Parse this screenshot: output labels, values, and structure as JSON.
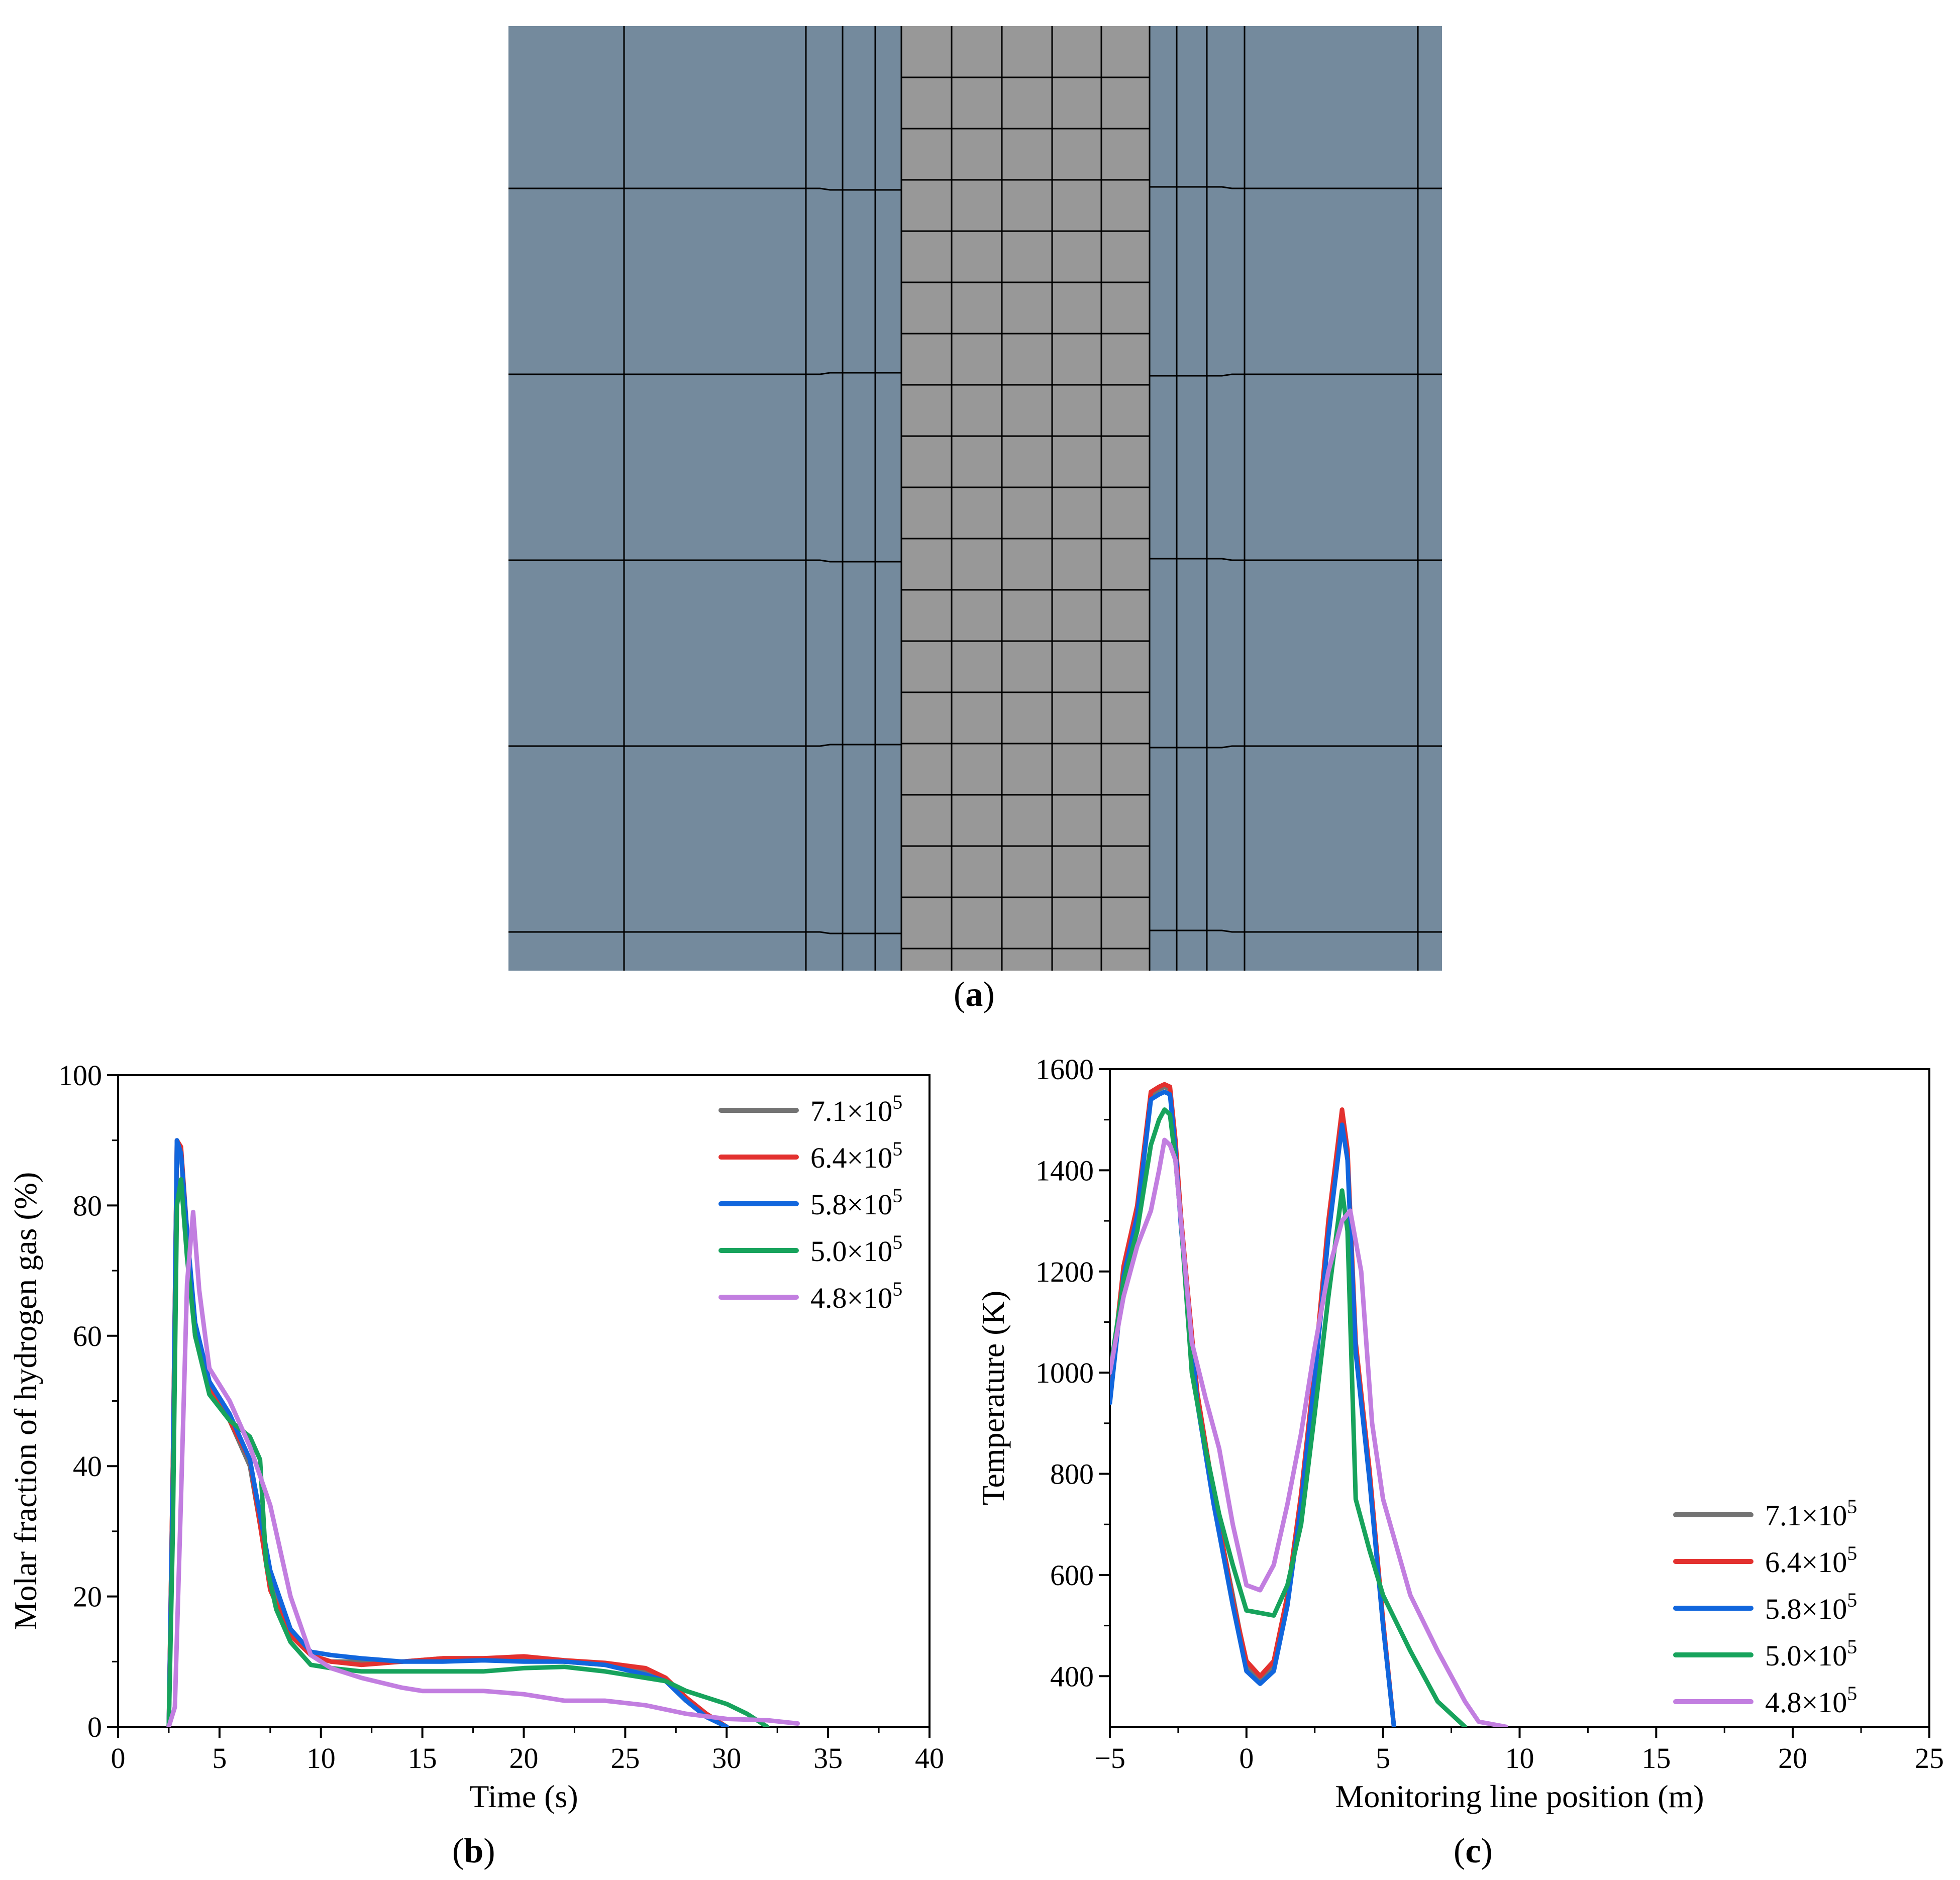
{
  "panel_labels": {
    "a": "a",
    "b": "b",
    "c": "c"
  },
  "mesh": {
    "outer_color": "#748a9d",
    "inner_color": "#989898",
    "line_color": "#000000"
  },
  "series_colors": {
    "7.1×10^5": "#737373",
    "6.4×10^5": "#e3312f",
    "5.8×10^5": "#1166dd",
    "5.0×10^5": "#17a35c",
    "4.8×10^5": "#c27ee0"
  },
  "chart_data": [
    {
      "id": "b",
      "type": "line",
      "xlabel": "Time (s)",
      "ylabel": "Molar fraction of hydrogen gas (%)",
      "xlim": [
        0,
        40
      ],
      "ylim": [
        0,
        100
      ],
      "xticks": [
        0,
        5,
        10,
        15,
        20,
        25,
        30,
        35,
        40
      ],
      "yticks": [
        0,
        20,
        40,
        60,
        80,
        100
      ],
      "legend_position": "top-right",
      "series": [
        {
          "name": "7.1×10^5",
          "base": "7.1×10",
          "exp": "5",
          "color": "#737373",
          "x": [
            2.5,
            2.7,
            2.9,
            3.1,
            3.4,
            3.8,
            4.5,
            5.5,
            6.5,
            7.5,
            8.5,
            9.5,
            10.5,
            12,
            14,
            16,
            18,
            20,
            22,
            24,
            26,
            27,
            28,
            29,
            30
          ],
          "y": [
            0,
            40,
            89,
            88,
            75,
            60,
            52,
            47,
            40,
            22,
            15,
            11,
            10,
            10,
            10,
            10.5,
            10.5,
            10.5,
            10,
            9.5,
            8.5,
            7,
            4,
            1.5,
            0
          ]
        },
        {
          "name": "6.4×10^5",
          "base": "6.4×10",
          "exp": "5",
          "color": "#e3312f",
          "x": [
            2.5,
            2.7,
            2.9,
            3.1,
            3.4,
            3.8,
            4.5,
            5.5,
            6.5,
            7.5,
            8.5,
            9.5,
            10.5,
            12,
            14,
            16,
            18,
            20,
            22,
            24,
            26,
            27,
            28,
            29,
            30
          ],
          "y": [
            0,
            40,
            90,
            89,
            76,
            60,
            52,
            47,
            41,
            21,
            14,
            11,
            10,
            9.5,
            10,
            10.5,
            10.5,
            10.8,
            10.2,
            9.8,
            9,
            7.5,
            4.5,
            2,
            0
          ]
        },
        {
          "name": "5.8×10^5",
          "base": "5.8×10",
          "exp": "5",
          "color": "#1166dd",
          "x": [
            2.5,
            2.7,
            2.9,
            3.1,
            3.4,
            3.8,
            4.5,
            5.5,
            6.5,
            7.5,
            8.5,
            9.5,
            10.5,
            12,
            14,
            16,
            18,
            20,
            22,
            24,
            26,
            27,
            28,
            29,
            30
          ],
          "y": [
            0,
            38,
            90,
            88,
            76,
            62,
            53,
            48,
            41,
            24,
            15,
            11.5,
            11,
            10.5,
            10,
            10,
            10.2,
            10,
            10,
            9.5,
            8,
            7,
            4,
            1.5,
            0
          ]
        },
        {
          "name": "5.0×10^5",
          "base": "5.0×10",
          "exp": "5",
          "color": "#17a35c",
          "x": [
            2.5,
            2.7,
            2.9,
            3.1,
            3.4,
            3.8,
            4.5,
            5.5,
            6.5,
            7.0,
            7.3,
            7.8,
            8.5,
            9.5,
            10.5,
            12,
            14,
            16,
            18,
            20,
            22,
            24,
            26,
            27,
            28,
            30,
            31,
            32
          ],
          "y": [
            0,
            30,
            80,
            84,
            72,
            60,
            51,
            47,
            44.5,
            41,
            25,
            18,
            13,
            9.5,
            9,
            8.5,
            8.5,
            8.5,
            8.5,
            9,
            9.2,
            8.5,
            7.5,
            7,
            5.5,
            3.5,
            2,
            0
          ]
        },
        {
          "name": "4.8×10^5",
          "base": "4.8×10",
          "exp": "5",
          "color": "#c27ee0",
          "x": [
            2.5,
            2.8,
            3.1,
            3.4,
            3.7,
            4.0,
            4.5,
            5.5,
            6.5,
            7.5,
            8.5,
            9.5,
            10.5,
            12,
            14,
            15,
            18,
            20,
            22,
            24,
            26,
            28,
            30,
            32,
            33.5
          ],
          "y": [
            0,
            3,
            35,
            68,
            79,
            67,
            55,
            50,
            43,
            34,
            20,
            11,
            9,
            7.5,
            6,
            5.5,
            5.5,
            5,
            4,
            4,
            3.3,
            2,
            1.2,
            1,
            0.5
          ]
        }
      ]
    },
    {
      "id": "c",
      "type": "line",
      "xlabel": "Monitoring line position (m)",
      "ylabel": "Temperature (K)",
      "xlim": [
        -5,
        25
      ],
      "ylim": [
        300,
        1600
      ],
      "xticks": [
        -5,
        0,
        5,
        10,
        15,
        20,
        25
      ],
      "xtick_labels": [
        "−5",
        "0",
        "5",
        "10",
        "15",
        "20",
        "25"
      ],
      "yticks": [
        400,
        600,
        800,
        1000,
        1200,
        1400,
        1600
      ],
      "legend_position": "bottom-right",
      "series": [
        {
          "name": "7.1×10^5",
          "base": "7.1×10",
          "exp": "5",
          "color": "#737373",
          "x": [
            -5,
            -4.5,
            -4,
            -3.5,
            -3.2,
            -3.0,
            -2.8,
            -2.6,
            -2.4,
            -2.2,
            -1.8,
            -1.2,
            -0.5,
            0,
            0.5,
            1.0,
            1.5,
            2.0,
            2.5,
            3.0,
            3.5,
            3.7,
            4.0,
            4.5,
            5.0,
            5.4
          ],
          "y": [
            950,
            1200,
            1320,
            1550,
            1560,
            1565,
            1560,
            1450,
            1300,
            1180,
            950,
            750,
            560,
            420,
            395,
            420,
            550,
            750,
            1000,
            1280,
            1500,
            1430,
            1050,
            800,
            500,
            300
          ]
        },
        {
          "name": "6.4×10^5",
          "base": "6.4×10",
          "exp": "5",
          "color": "#e3312f",
          "x": [
            -5,
            -4.5,
            -4,
            -3.5,
            -3.2,
            -3.0,
            -2.8,
            -2.6,
            -2.4,
            -2.2,
            -1.8,
            -1.2,
            -0.5,
            0,
            0.5,
            1.0,
            1.5,
            2.0,
            2.5,
            3.0,
            3.5,
            3.7,
            4.0,
            4.5,
            5.0,
            5.4
          ],
          "y": [
            960,
            1210,
            1330,
            1555,
            1565,
            1570,
            1565,
            1460,
            1310,
            1190,
            960,
            760,
            550,
            430,
            400,
            430,
            560,
            760,
            1010,
            1300,
            1520,
            1440,
            1060,
            810,
            510,
            300
          ]
        },
        {
          "name": "5.8×10^5",
          "base": "5.8×10",
          "exp": "5",
          "color": "#1166dd",
          "x": [
            -5,
            -4.5,
            -4,
            -3.5,
            -3.2,
            -3.0,
            -2.8,
            -2.6,
            -2.4,
            -2.2,
            -1.8,
            -1.2,
            -0.5,
            0,
            0.5,
            1.0,
            1.5,
            2.0,
            2.5,
            3.0,
            3.5,
            3.7,
            4.0,
            4.5,
            5.0,
            5.4
          ],
          "y": [
            940,
            1190,
            1310,
            1540,
            1550,
            1555,
            1550,
            1440,
            1290,
            1170,
            940,
            740,
            540,
            410,
            385,
            410,
            540,
            740,
            990,
            1270,
            1490,
            1420,
            1040,
            790,
            500,
            300
          ]
        },
        {
          "name": "5.0×10^5",
          "base": "5.0×10",
          "exp": "5",
          "color": "#17a35c",
          "x": [
            -5,
            -4.5,
            -4,
            -3.5,
            -3.2,
            -3.0,
            -2.8,
            -2.6,
            -2.4,
            -2.0,
            -1.5,
            -1.0,
            -0.5,
            0,
            0.5,
            1.0,
            1.5,
            2.0,
            2.5,
            3.0,
            3.5,
            3.7,
            4.0,
            4.5,
            5.0,
            6.0,
            7.0,
            8.0
          ],
          "y": [
            1000,
            1180,
            1280,
            1450,
            1500,
            1520,
            1510,
            1420,
            1300,
            1000,
            850,
            720,
            620,
            530,
            525,
            520,
            580,
            700,
            920,
            1150,
            1360,
            1280,
            750,
            650,
            560,
            450,
            350,
            300
          ]
        },
        {
          "name": "4.8×10^5",
          "base": "4.8×10",
          "exp": "5",
          "color": "#c27ee0",
          "x": [
            -5,
            -4.5,
            -4,
            -3.5,
            -3.2,
            -3.0,
            -2.8,
            -2.6,
            -2.4,
            -2.0,
            -1.5,
            -1.0,
            -0.5,
            0,
            0.5,
            1.0,
            1.5,
            2.0,
            2.5,
            3.0,
            3.5,
            3.8,
            4.2,
            4.6,
            5.0,
            6.0,
            7.0,
            8.0,
            8.5,
            9.5
          ],
          "y": [
            1000,
            1150,
            1250,
            1320,
            1400,
            1460,
            1450,
            1420,
            1300,
            1060,
            950,
            850,
            700,
            580,
            570,
            620,
            740,
            880,
            1050,
            1200,
            1300,
            1320,
            1200,
            900,
            750,
            560,
            450,
            350,
            310,
            300
          ]
        }
      ]
    }
  ]
}
